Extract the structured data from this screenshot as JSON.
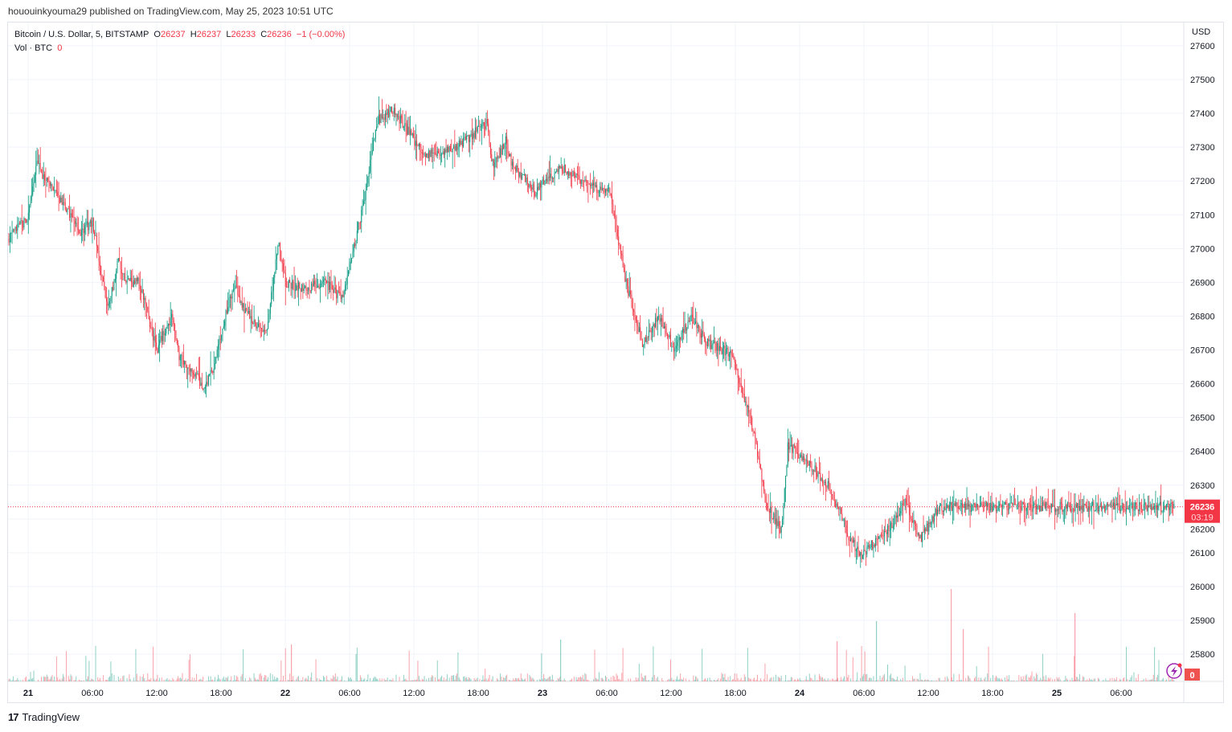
{
  "publisher_line": "hououinkyouma29 published on TradingView.com, May 25, 2023 10:51 UTC",
  "legend": {
    "symbol": "Bitcoin / U.S. Dollar, 5, BITSTAMP",
    "o_label": "O",
    "o": "26237",
    "h_label": "H",
    "h": "26237",
    "l_label": "L",
    "l": "26233",
    "c_label": "C",
    "c": "26236",
    "change": "−1 (−0.00%)",
    "vol_label": "Vol · BTC",
    "vol": "0"
  },
  "currency": "USD",
  "price_tag": {
    "price": "26236",
    "countdown": "03:19"
  },
  "volume_tag": "0",
  "brand": "TradingView",
  "colors": {
    "up": "#089981",
    "down": "#f23645",
    "grid": "#f0f3fa"
  },
  "chart_data": {
    "type": "candlestick",
    "title": "Bitcoin / U.S. Dollar, 5, BITSTAMP",
    "ylabel": "USD",
    "ylim": [
      25750,
      27650
    ],
    "yticks": [
      "27600",
      "27500",
      "27400",
      "27300",
      "27200",
      "27100",
      "27000",
      "26900",
      "26800",
      "26700",
      "26600",
      "26500",
      "26400",
      "26300",
      "26200",
      "26100",
      "26000",
      "25900",
      "25800"
    ],
    "xticks": [
      "21",
      "06:00",
      "12:00",
      "18:00",
      "22",
      "06:00",
      "12:00",
      "18:00",
      "23",
      "06:00",
      "12:00",
      "18:00",
      "24",
      "06:00",
      "12:00",
      "18:00",
      "25",
      "06:00"
    ],
    "x_hours_from_may21": [
      -1.9,
      0,
      0.9,
      1.5,
      2.4,
      3.4,
      4.9,
      6.0,
      7.0,
      7.5,
      8.4,
      9.1,
      10.4,
      12.0,
      13.4,
      14.1,
      15.8,
      16.4,
      17.3,
      18.8,
      19.4,
      20.3,
      22.2,
      23.4,
      24.0,
      25.6,
      27.8,
      29.3,
      30.7,
      31.1,
      32.6,
      34.1,
      36.9,
      39.9,
      42.8,
      43.4,
      44.6,
      45.1,
      47.3,
      48.3,
      49.8,
      52.8,
      54.3,
      55.8,
      57.3,
      58.8,
      60.3,
      61.8,
      63.4,
      65.6,
      67.8,
      68.8,
      70.2,
      70.5,
      70.9,
      72.4,
      74.7,
      76.6,
      77.7,
      80.5,
      81.8,
      83.3,
      84.9,
      86.0,
      86.3,
      86.9,
      87.6,
      90.6,
      92.9,
      94.4,
      96.6,
      97.7,
      98.1,
      99.6,
      102.6,
      104.1,
      105.6,
      107.3
    ],
    "close": [
      27030,
      27090,
      27270,
      27200,
      27180,
      27120,
      27050,
      27080,
      26900,
      26820,
      26970,
      26900,
      26900,
      26700,
      26800,
      26680,
      26620,
      26580,
      26650,
      26850,
      26880,
      26810,
      26750,
      27020,
      26900,
      26880,
      26900,
      26850,
      27050,
      27100,
      27380,
      27410,
      27280,
      27300,
      27370,
      27240,
      27320,
      27250,
      27170,
      27200,
      27240,
      27180,
      27170,
      26900,
      26720,
      26800,
      26700,
      26800,
      26720,
      26690,
      26450,
      26250,
      26170,
      26230,
      26420,
      26380,
      26300,
      26150,
      26090,
      26180,
      26250,
      26140,
      26230,
      26236,
      26236,
      26236,
      26236,
      26236,
      26236,
      26236,
      26236,
      26236,
      26236,
      26236,
      26236,
      26236,
      26236,
      26236
    ]
  }
}
